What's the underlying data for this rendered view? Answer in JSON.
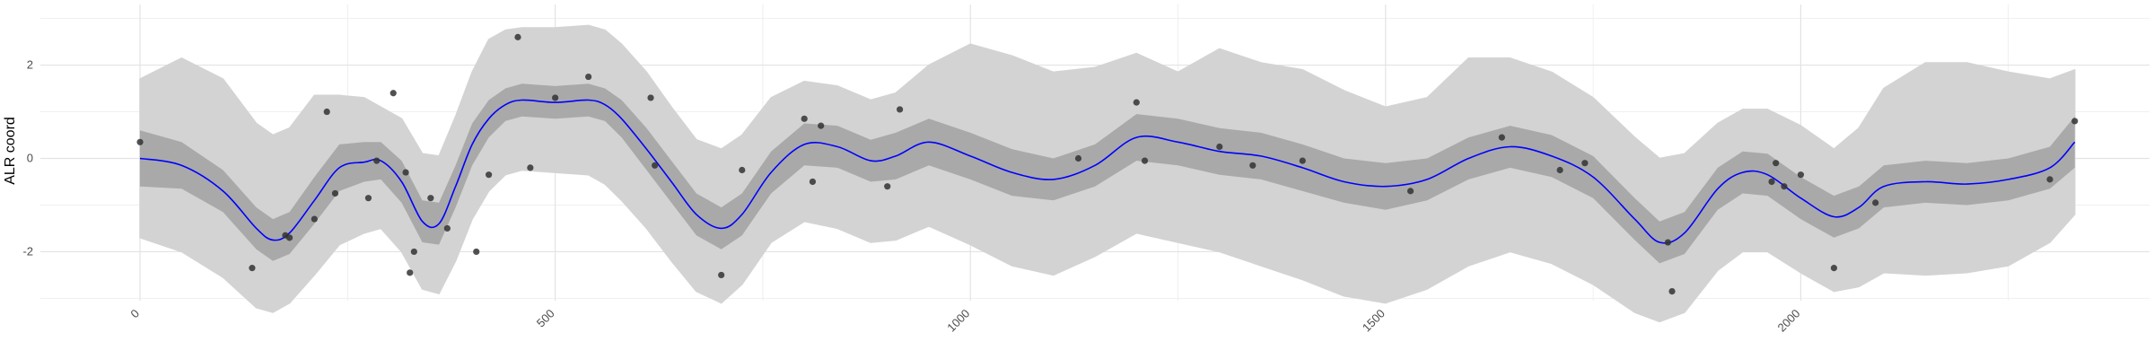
{
  "chart_data": {
    "type": "line",
    "title": "",
    "xlabel": "",
    "ylabel": "ALR coord",
    "xlim": [
      -120,
      2420
    ],
    "ylim": [
      -3.05,
      3.3
    ],
    "xticks": [
      0,
      500,
      1000,
      1500,
      2000
    ],
    "xtick_labels": [
      "0",
      "500",
      "1000",
      "1500",
      "2000"
    ],
    "yticks": [
      -2,
      0,
      2
    ],
    "ytick_labels": [
      "-2",
      "0",
      "2"
    ],
    "grid": true,
    "legend": "none",
    "colors": {
      "mean_line": "#0000ff",
      "band_95": "#d3d3d3",
      "band_50": "#a9a9a9",
      "points": "#333333",
      "grid": "#ebebeb",
      "background": "#ffffff"
    },
    "series": [
      {
        "role": "mean",
        "x": [
          0,
          50,
          100,
          140,
          160,
          180,
          210,
          240,
          270,
          290,
          315,
          340,
          360,
          380,
          400,
          420,
          440,
          460,
          500,
          540,
          560,
          580,
          610,
          640,
          670,
          700,
          725,
          760,
          800,
          840,
          880,
          910,
          950,
          1000,
          1050,
          1100,
          1150,
          1200,
          1250,
          1300,
          1350,
          1400,
          1450,
          1500,
          1550,
          1600,
          1650,
          1700,
          1750,
          1800,
          1830,
          1860,
          1900,
          1930,
          1960,
          2000,
          2040,
          2070,
          2100,
          2150,
          2200,
          2250,
          2300,
          2330
        ],
        "y": [
          0.0,
          -0.15,
          -0.7,
          -1.5,
          -1.75,
          -1.6,
          -0.9,
          -0.2,
          -0.08,
          -0.05,
          -0.5,
          -1.35,
          -1.4,
          -0.6,
          0.3,
          0.85,
          1.15,
          1.25,
          1.2,
          1.25,
          1.15,
          0.85,
          0.2,
          -0.5,
          -1.2,
          -1.5,
          -1.2,
          -0.3,
          0.3,
          0.25,
          -0.05,
          0.05,
          0.35,
          0.05,
          -0.3,
          -0.45,
          -0.15,
          0.45,
          0.35,
          0.15,
          0.05,
          -0.2,
          -0.5,
          -0.6,
          -0.45,
          0.0,
          0.25,
          0.05,
          -0.4,
          -1.3,
          -1.8,
          -1.6,
          -0.65,
          -0.3,
          -0.35,
          -0.85,
          -1.25,
          -1.05,
          -0.6,
          -0.5,
          -0.55,
          -0.45,
          -0.2,
          0.35
        ]
      },
      {
        "role": "band_50",
        "x": [
          0,
          50,
          100,
          140,
          160,
          180,
          210,
          240,
          270,
          290,
          315,
          340,
          360,
          380,
          400,
          420,
          440,
          460,
          500,
          540,
          560,
          580,
          610,
          640,
          670,
          700,
          725,
          760,
          800,
          840,
          880,
          910,
          950,
          1000,
          1050,
          1100,
          1150,
          1200,
          1250,
          1300,
          1350,
          1400,
          1450,
          1500,
          1550,
          1600,
          1650,
          1700,
          1750,
          1800,
          1830,
          1860,
          1900,
          1930,
          1960,
          2000,
          2040,
          2070,
          2100,
          2150,
          2200,
          2250,
          2300,
          2330
        ],
        "lower": [
          -0.6,
          -0.65,
          -1.15,
          -1.95,
          -2.2,
          -2.05,
          -1.4,
          -0.7,
          -0.5,
          -0.45,
          -0.95,
          -1.8,
          -1.85,
          -1.05,
          -0.15,
          0.45,
          0.8,
          0.9,
          0.85,
          0.9,
          0.8,
          0.45,
          -0.25,
          -0.95,
          -1.65,
          -1.95,
          -1.65,
          -0.75,
          -0.15,
          -0.2,
          -0.5,
          -0.45,
          -0.15,
          -0.45,
          -0.8,
          -0.9,
          -0.6,
          -0.05,
          -0.15,
          -0.35,
          -0.45,
          -0.7,
          -0.95,
          -1.1,
          -0.9,
          -0.45,
          -0.2,
          -0.4,
          -0.85,
          -1.75,
          -2.25,
          -2.05,
          -1.1,
          -0.75,
          -0.8,
          -1.3,
          -1.7,
          -1.5,
          -1.05,
          -0.95,
          -1.0,
          -0.9,
          -0.65,
          -0.2
        ],
        "upper": [
          0.6,
          0.35,
          -0.25,
          -1.05,
          -1.3,
          -1.15,
          -0.4,
          0.3,
          0.35,
          0.35,
          -0.05,
          -0.9,
          -0.95,
          -0.15,
          0.75,
          1.25,
          1.5,
          1.6,
          1.55,
          1.6,
          1.5,
          1.25,
          0.65,
          -0.05,
          -0.75,
          -1.05,
          -0.75,
          0.15,
          0.75,
          0.7,
          0.4,
          0.55,
          0.85,
          0.55,
          0.2,
          0.0,
          0.3,
          0.95,
          0.85,
          0.65,
          0.55,
          0.3,
          0.0,
          -0.1,
          0.0,
          0.45,
          0.7,
          0.5,
          0.05,
          -0.85,
          -1.35,
          -1.15,
          -0.2,
          0.15,
          0.1,
          -0.4,
          -0.8,
          -0.6,
          -0.15,
          -0.05,
          -0.1,
          0.0,
          0.25,
          0.9
        ]
      },
      {
        "role": "band_95",
        "x": [
          0,
          50,
          100,
          140,
          160,
          180,
          210,
          240,
          270,
          290,
          315,
          340,
          360,
          380,
          400,
          420,
          440,
          460,
          500,
          540,
          560,
          580,
          610,
          640,
          670,
          700,
          725,
          760,
          800,
          840,
          880,
          910,
          950,
          1000,
          1050,
          1100,
          1150,
          1200,
          1250,
          1300,
          1350,
          1400,
          1450,
          1500,
          1550,
          1600,
          1650,
          1700,
          1750,
          1800,
          1830,
          1860,
          1900,
          1930,
          1960,
          2000,
          2040,
          2070,
          2100,
          2150,
          2200,
          2250,
          2300,
          2330
        ],
        "lower": [
          -1.7,
          -2.0,
          -2.55,
          -3.2,
          -3.3,
          -3.1,
          -2.5,
          -1.85,
          -1.6,
          -1.5,
          -2.0,
          -2.8,
          -2.9,
          -2.2,
          -1.3,
          -0.7,
          -0.35,
          -0.25,
          -0.3,
          -0.35,
          -0.55,
          -0.9,
          -1.5,
          -2.2,
          -2.85,
          -3.1,
          -2.7,
          -1.8,
          -1.35,
          -1.5,
          -1.8,
          -1.75,
          -1.45,
          -1.85,
          -2.3,
          -2.5,
          -2.1,
          -1.6,
          -1.8,
          -2.0,
          -2.3,
          -2.6,
          -2.95,
          -3.1,
          -2.8,
          -2.3,
          -2.0,
          -2.25,
          -2.7,
          -3.3,
          -3.5,
          -3.3,
          -2.4,
          -2.0,
          -2.0,
          -2.45,
          -2.85,
          -2.75,
          -2.45,
          -2.5,
          -2.45,
          -2.3,
          -1.8,
          -1.2
        ],
        "upper": [
          1.7,
          2.15,
          1.7,
          0.75,
          0.5,
          0.65,
          1.35,
          1.35,
          1.3,
          1.1,
          0.85,
          0.1,
          0.05,
          0.9,
          1.85,
          2.55,
          2.75,
          2.8,
          2.8,
          2.85,
          2.75,
          2.45,
          1.85,
          1.1,
          0.4,
          0.2,
          0.5,
          1.3,
          1.65,
          1.55,
          1.25,
          1.4,
          2.0,
          2.45,
          2.2,
          1.85,
          1.95,
          2.25,
          1.85,
          2.35,
          2.05,
          1.9,
          1.45,
          1.1,
          1.3,
          2.15,
          2.15,
          1.85,
          1.3,
          0.45,
          0.0,
          0.1,
          0.75,
          1.05,
          1.05,
          0.7,
          0.2,
          0.65,
          1.5,
          2.05,
          2.05,
          1.85,
          1.7,
          1.9
        ]
      },
      {
        "role": "observations",
        "x": [
          0,
          135,
          175,
          180,
          210,
          225,
          235,
          275,
          285,
          305,
          320,
          325,
          330,
          350,
          370,
          405,
          420,
          455,
          470,
          500,
          540,
          615,
          620,
          700,
          725,
          800,
          810,
          820,
          900,
          915,
          1130,
          1200,
          1210,
          1300,
          1340,
          1400,
          1530,
          1640,
          1710,
          1740,
          1840,
          1845,
          1965,
          1970,
          1980,
          2000,
          2040,
          2090,
          2300,
          2330
        ],
        "y": [
          0.35,
          -2.35,
          -1.65,
          -1.7,
          -1.3,
          1.0,
          -0.75,
          -0.85,
          -0.05,
          1.4,
          -0.3,
          -2.45,
          -2.0,
          -0.85,
          -1.5,
          -2.0,
          -0.35,
          2.6,
          -0.2,
          1.3,
          1.75,
          1.3,
          -0.15,
          -2.5,
          -0.25,
          0.85,
          -0.5,
          0.7,
          -0.6,
          1.05,
          0.0,
          1.2,
          -0.05,
          0.25,
          -0.15,
          -0.05,
          -0.7,
          0.45,
          -0.25,
          -0.1,
          -1.8,
          -2.85,
          -0.5,
          -0.1,
          -0.6,
          -0.35,
          -2.35,
          -0.95,
          -0.45,
          0.8
        ]
      }
    ]
  }
}
